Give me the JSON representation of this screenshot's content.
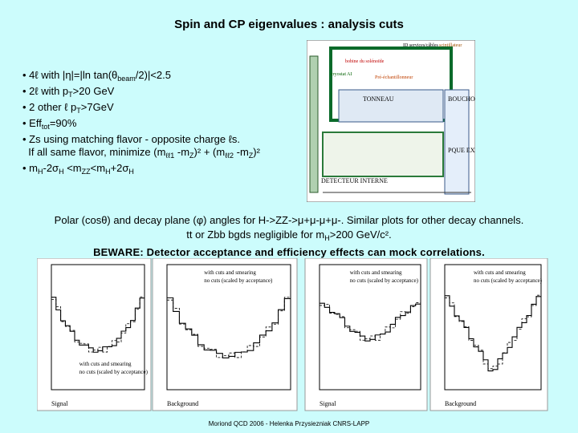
{
  "title": "Spin and CP eigenvalues : analysis cuts",
  "bullets": [
    [
      {
        "text": "• 4ℓ with |η|=|ln tan(θ"
      },
      {
        "text": "beam",
        "style": "sub"
      },
      {
        "text": "/2)|<2.5"
      }
    ],
    [
      {
        "text": "• 2ℓ with p"
      },
      {
        "text": "T",
        "style": "sub"
      },
      {
        "text": ">20 GeV"
      }
    ],
    [
      {
        "text": "• 2 other ℓ p"
      },
      {
        "text": "T",
        "style": "sub"
      },
      {
        "text": ">7GeV"
      }
    ],
    [
      {
        "text": "• Eff"
      },
      {
        "text": "tot",
        "style": "sub"
      },
      {
        "text": "=90%"
      }
    ],
    [
      {
        "text": "• Zs using matching flavor - opposite charge ℓs."
      }
    ],
    [
      {
        "text": "  If all same flavor, minimize (m"
      },
      {
        "text": "ℓℓ1",
        "style": "sub"
      },
      {
        "text": " -m"
      },
      {
        "text": "Z",
        "style": "sub"
      },
      {
        "text": ")² + (m"
      },
      {
        "text": "ℓℓ2",
        "style": "sub"
      },
      {
        "text": " -m"
      },
      {
        "text": "Z",
        "style": "sub"
      },
      {
        "text": ")²"
      }
    ],
    [
      {
        "text": "• m"
      },
      {
        "text": "H",
        "style": "sub"
      },
      {
        "text": "-2σ"
      },
      {
        "text": "H",
        "style": "sub"
      },
      {
        "text": " <m"
      },
      {
        "text": "ZZ",
        "style": "sub"
      },
      {
        "text": "<m"
      },
      {
        "text": "H",
        "style": "sub"
      },
      {
        "text": "+2σ"
      },
      {
        "text": "H",
        "style": "sub"
      }
    ]
  ],
  "detector": {
    "labels": [
      "ID services/câbles",
      "scintillateur",
      "bobine du solénoïde",
      "cryostat AI",
      "Pré-échantillonneur",
      "TONNEAU",
      "BOUCHON",
      "DETECTEUR INTERNE",
      "PQUE EXTERNE"
    ]
  },
  "caption": [
    [
      {
        "text": "Polar (cosθ) and decay plane (φ) angles for H->ZZ->μ+μ-μ+μ-. Similar plots for other decay channels."
      }
    ],
    [
      {
        "text": "tt or Zbb bgds negligible for m"
      },
      {
        "text": "H",
        "style": "sub"
      },
      {
        "text": ">200 GeV/c²."
      }
    ],
    [
      {
        "text": "BEWARE: Detector acceptance and efficiency effects can mock correlations.",
        "style": "bold"
      }
    ]
  ],
  "plots": [
    {
      "legend": [
        "with cuts and smearing",
        "no cuts (scaled by acceptance)"
      ],
      "label": "Signal"
    },
    {
      "legend": [
        "with cuts and smearing",
        "no cuts (scaled by acceptance)"
      ],
      "label": "Background"
    },
    {
      "legend": [
        "with cuts and smearing",
        "no cuts (scaled by acceptance)"
      ],
      "label": "Signal"
    },
    {
      "legend": [
        "with cuts and smearing",
        "no cuts (scaled by acceptance)"
      ],
      "label": "Background"
    }
  ],
  "footer": "Moriond QCD 2006 - Helenka Przysiezniak CNRS-LAPP"
}
